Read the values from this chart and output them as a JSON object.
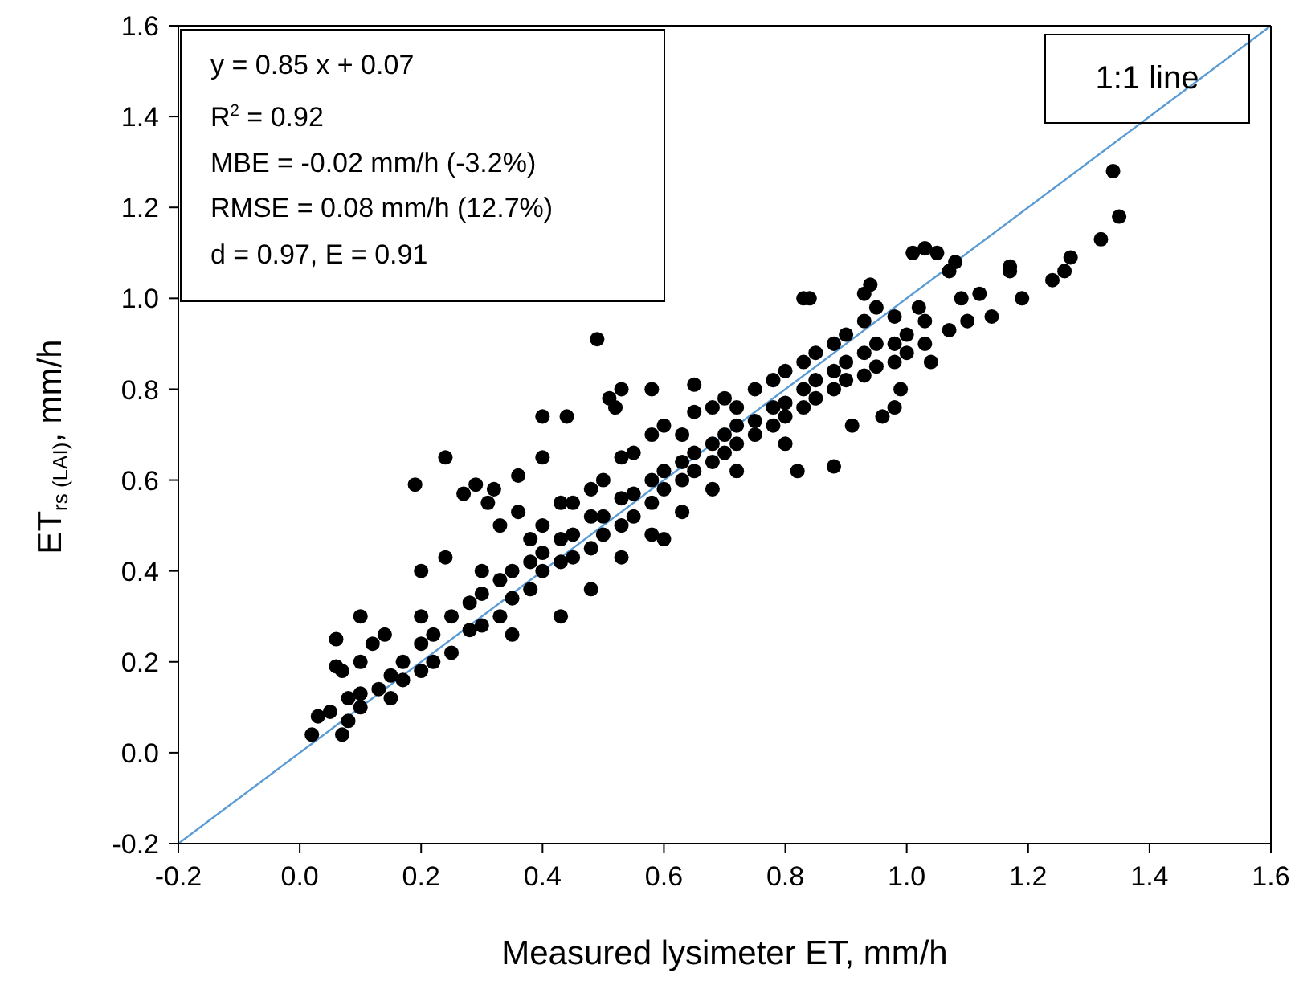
{
  "chart_data": {
    "type": "scatter",
    "xlabel": "Measured lysimeter ET, mm/h",
    "ylabel": "ET$_{rs (LAI)}$, mm/h",
    "xlim": [
      -0.2,
      1.6
    ],
    "ylim": [
      -0.2,
      1.6
    ],
    "xticks": [
      -0.2,
      {
        "value": 0,
        "label": "0.0"
      },
      0.2,
      0.4,
      0.6,
      0.8,
      {
        "value": 1,
        "label": "1.0"
      },
      1.2,
      1.4,
      1.6
    ],
    "yticks": [
      -0.2,
      {
        "value": 0,
        "label": "0.0"
      },
      0.2,
      0.4,
      0.6,
      0.8,
      {
        "value": 1,
        "label": "1.0"
      },
      1.2,
      1.4,
      1.6
    ],
    "marker": "circle",
    "annotations": [
      "y = 0.85 x + 0.07",
      "R$^{2}$ = 0.92",
      "MBE = -0.02 mm/h (-3.2%)",
      "RMSE = 0.08 mm/h (12.7%)",
      "d = 0.97, E = 0.91",
      "1:1 line"
    ],
    "series": [
      {
        "color": "#000000",
        "x": [
          0.02,
          0.03,
          0.05,
          0.07,
          0.06,
          0.06,
          0.07,
          0.1,
          0.1,
          0.12,
          0.14,
          0.19,
          0.24,
          0.27,
          0.29,
          0.31,
          0.32,
          0.36,
          0.36,
          0.33,
          0.4,
          0.44,
          0.4,
          0.49,
          0.51,
          0.53,
          0.52,
          0.58,
          0.65,
          0.43,
          0.24,
          0.2,
          0.6,
          0.82,
          0.88,
          0.91,
          0.96,
          0.98,
          0.99,
          0.83,
          0.84,
          0.93,
          0.94,
          0.95,
          1.01,
          1.03,
          1.05,
          1.07,
          1.08,
          1.04,
          1.07,
          1.09,
          1.12,
          1.14,
          1.17,
          1.17,
          1.19,
          1.24,
          1.26,
          1.27,
          1.32,
          1.34,
          1.35,
          1.1,
          1.02,
          0.08,
          0.08,
          0.1,
          0.1,
          0.13,
          0.15,
          0.15,
          0.17,
          0.17,
          0.2,
          0.2,
          0.2,
          0.22,
          0.22,
          0.25,
          0.25,
          0.28,
          0.28,
          0.3,
          0.3,
          0.3,
          0.33,
          0.33,
          0.35,
          0.35,
          0.35,
          0.38,
          0.38,
          0.38,
          0.4,
          0.4,
          0.4,
          0.43,
          0.43,
          0.43,
          0.45,
          0.45,
          0.45,
          0.48,
          0.48,
          0.48,
          0.48,
          0.5,
          0.5,
          0.5,
          0.53,
          0.53,
          0.53,
          0.53,
          0.55,
          0.55,
          0.55,
          0.58,
          0.58,
          0.58,
          0.58,
          0.6,
          0.6,
          0.6,
          0.63,
          0.63,
          0.63,
          0.63,
          0.65,
          0.65,
          0.65,
          0.68,
          0.68,
          0.68,
          0.68,
          0.7,
          0.7,
          0.7,
          0.72,
          0.72,
          0.72,
          0.72,
          0.75,
          0.75,
          0.75,
          0.78,
          0.78,
          0.78,
          0.8,
          0.8,
          0.8,
          0.8,
          0.83,
          0.83,
          0.83,
          0.85,
          0.85,
          0.85,
          0.88,
          0.88,
          0.88,
          0.9,
          0.9,
          0.9,
          0.93,
          0.93,
          0.93,
          0.95,
          0.95,
          0.98,
          0.98,
          0.98,
          1.0,
          1.0,
          1.03,
          1.03
        ],
        "values": [
          0.04,
          0.08,
          0.09,
          0.04,
          0.25,
          0.19,
          0.18,
          0.3,
          0.2,
          0.24,
          0.26,
          0.59,
          0.65,
          0.57,
          0.59,
          0.55,
          0.58,
          0.61,
          0.53,
          0.5,
          0.74,
          0.74,
          0.65,
          0.91,
          0.78,
          0.8,
          0.76,
          0.8,
          0.81,
          0.3,
          0.43,
          0.4,
          0.47,
          0.62,
          0.63,
          0.72,
          0.74,
          0.76,
          0.8,
          1.0,
          1.0,
          1.01,
          1.03,
          0.98,
          1.1,
          1.11,
          1.1,
          1.06,
          1.08,
          0.86,
          0.93,
          1.0,
          1.01,
          0.96,
          1.06,
          1.07,
          1.0,
          1.04,
          1.06,
          1.09,
          1.13,
          1.28,
          1.18,
          0.95,
          0.98,
          0.12,
          0.07,
          0.13,
          0.1,
          0.14,
          0.17,
          0.12,
          0.2,
          0.16,
          0.24,
          0.18,
          0.3,
          0.26,
          0.2,
          0.3,
          0.22,
          0.33,
          0.27,
          0.35,
          0.28,
          0.4,
          0.38,
          0.3,
          0.4,
          0.34,
          0.26,
          0.42,
          0.36,
          0.47,
          0.44,
          0.4,
          0.5,
          0.47,
          0.42,
          0.55,
          0.48,
          0.43,
          0.55,
          0.52,
          0.45,
          0.58,
          0.36,
          0.52,
          0.48,
          0.6,
          0.56,
          0.5,
          0.65,
          0.43,
          0.57,
          0.52,
          0.66,
          0.6,
          0.55,
          0.7,
          0.48,
          0.62,
          0.58,
          0.72,
          0.64,
          0.6,
          0.7,
          0.53,
          0.66,
          0.62,
          0.75,
          0.68,
          0.64,
          0.76,
          0.58,
          0.7,
          0.66,
          0.78,
          0.72,
          0.68,
          0.62,
          0.76,
          0.73,
          0.7,
          0.8,
          0.76,
          0.72,
          0.82,
          0.77,
          0.74,
          0.84,
          0.68,
          0.8,
          0.76,
          0.86,
          0.82,
          0.78,
          0.88,
          0.84,
          0.8,
          0.9,
          0.86,
          0.82,
          0.92,
          0.88,
          0.83,
          0.95,
          0.9,
          0.85,
          0.9,
          0.86,
          0.96,
          0.92,
          0.88,
          0.9,
          0.95
        ]
      },
      {
        "type": "line",
        "marker": "none",
        "color": "#5b9bd5",
        "x": [
          -0.2,
          1.6
        ],
        "values": [
          -0.2,
          1.6
        ]
      }
    ]
  }
}
